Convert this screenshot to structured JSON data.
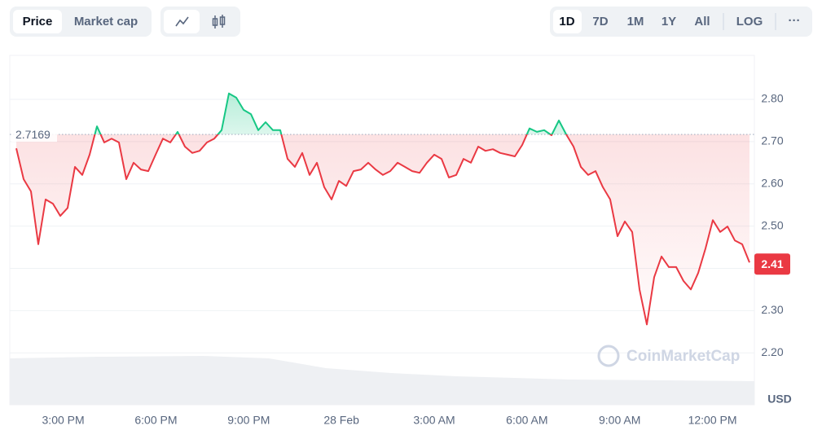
{
  "controls": {
    "views": [
      "Price",
      "Market cap"
    ],
    "ranges": [
      "1D",
      "7D",
      "1M",
      "1Y",
      "All"
    ],
    "scale": "LOG",
    "more": "···"
  },
  "watermark": "CoinMarketCap",
  "chart_data": {
    "type": "line",
    "unit": "USD",
    "baseline": 2.7169,
    "current_price": 2.41,
    "up_color": "#16c784",
    "down_color": "#ea3943",
    "xlim": [
      0,
      100
    ],
    "xticks": [
      {
        "value": 6.4,
        "label": "3:00 PM"
      },
      {
        "value": 19.05,
        "label": "6:00 PM"
      },
      {
        "value": 31.7,
        "label": "9:00 PM"
      },
      {
        "value": 44.35,
        "label": "28 Feb"
      },
      {
        "value": 57,
        "label": "3:00 AM"
      },
      {
        "value": 69.65,
        "label": "6:00 AM"
      },
      {
        "value": 82.3,
        "label": "9:00 AM"
      },
      {
        "value": 94.95,
        "label": "12:00 PM"
      }
    ],
    "ylim": [
      2.077,
      2.904
    ],
    "yticks": [
      {
        "value": 2.2,
        "label": "2.20"
      },
      {
        "value": 2.3,
        "label": "2.30"
      },
      {
        "value": 2.4,
        "label": "2.40"
      },
      {
        "value": 2.5,
        "label": "2.50"
      },
      {
        "value": 2.6,
        "label": "2.60"
      },
      {
        "value": 2.7,
        "label": "2.70"
      },
      {
        "value": 2.8,
        "label": "2.80"
      }
    ],
    "grid": true,
    "values": [
      2.684,
      2.611,
      2.582,
      2.457,
      2.563,
      2.553,
      2.524,
      2.543,
      2.64,
      2.621,
      2.669,
      2.736,
      2.698,
      2.707,
      2.698,
      2.611,
      2.65,
      2.634,
      2.63,
      2.669,
      2.707,
      2.698,
      2.723,
      2.688,
      2.673,
      2.678,
      2.698,
      2.707,
      2.727,
      2.814,
      2.804,
      2.775,
      2.765,
      2.727,
      2.746,
      2.727,
      2.727,
      2.659,
      2.64,
      2.673,
      2.621,
      2.65,
      2.592,
      2.563,
      2.607,
      2.595,
      2.63,
      2.634,
      2.65,
      2.634,
      2.621,
      2.63,
      2.65,
      2.64,
      2.63,
      2.626,
      2.65,
      2.669,
      2.659,
      2.615,
      2.621,
      2.659,
      2.65,
      2.688,
      2.678,
      2.682,
      2.673,
      2.669,
      2.665,
      2.692,
      2.731,
      2.723,
      2.727,
      2.715,
      2.75,
      2.717,
      2.688,
      2.64,
      2.621,
      2.63,
      2.592,
      2.563,
      2.476,
      2.511,
      2.486,
      2.35,
      2.267,
      2.379,
      2.428,
      2.403,
      2.403,
      2.37,
      2.35,
      2.389,
      2.447,
      2.514,
      2.486,
      2.499,
      2.466,
      2.457,
      2.414
    ]
  }
}
